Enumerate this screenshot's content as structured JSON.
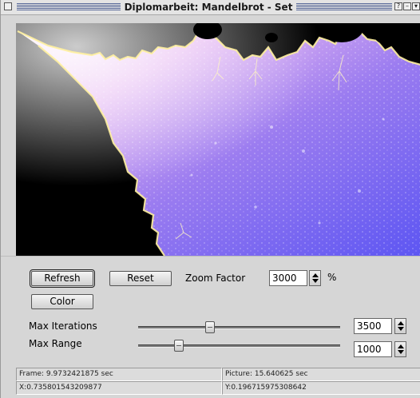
{
  "window": {
    "title": "Diplomarbeit: Mandelbrot - Set"
  },
  "controls": {
    "refresh_label": "Refresh",
    "reset_label": "Reset",
    "color_label": "Color",
    "zoom_label": "Zoom Factor",
    "zoom_value": "3000",
    "zoom_unit": "%",
    "max_iterations_label": "Max Iterations",
    "max_iterations_value": "3500",
    "max_range_label": "Max Range",
    "max_range_value": "1000"
  },
  "status": {
    "frame": "Frame: 9.9732421875 sec",
    "picture": "Picture: 15.640625 sec",
    "x": "X:0.735801543209877",
    "y": "Y:0.196715975308642"
  },
  "colors": {
    "set": "#000000",
    "fill_light": "#f2d8f0",
    "fill_violet": "#9a78ee",
    "fill_blue": "#6a58f0",
    "edge": "#fff3a0"
  }
}
